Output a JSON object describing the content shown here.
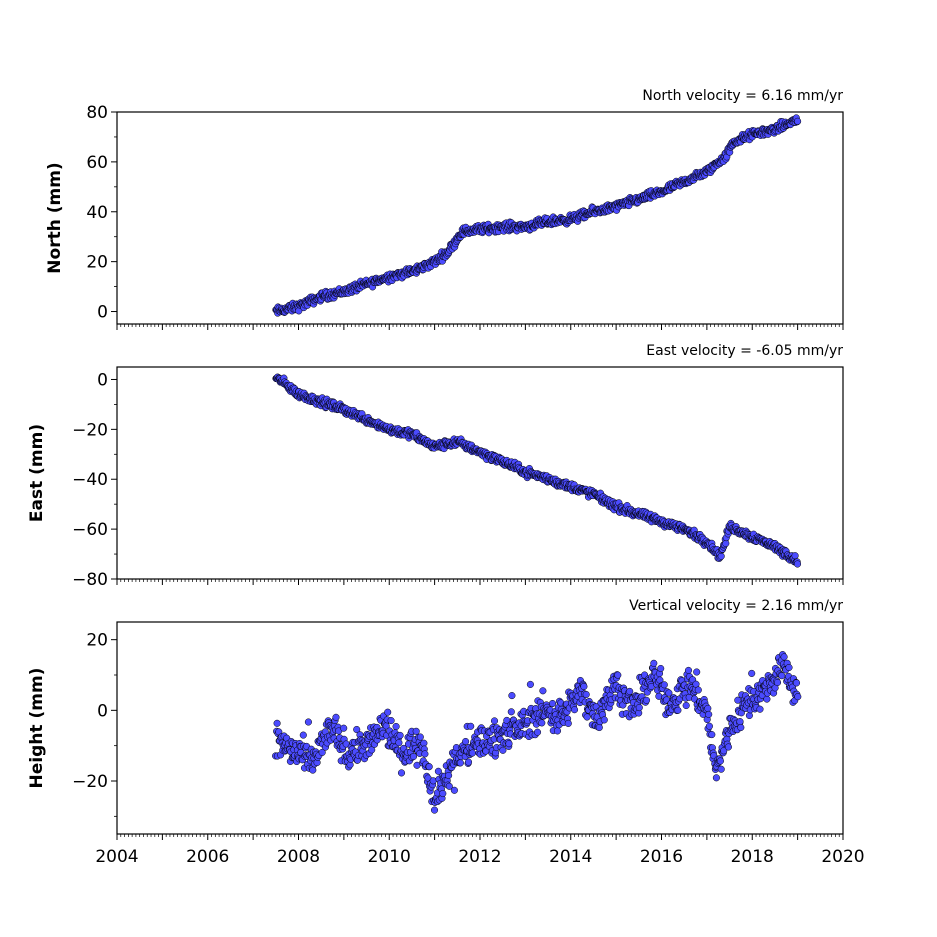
{
  "chart_data": [
    {
      "type": "scatter",
      "title": "North velocity = 6.16 mm/yr",
      "xlabel": "",
      "ylabel": "North (mm)",
      "xlim": [
        2004,
        2020
      ],
      "ylim": [
        -5,
        80
      ],
      "yticks": [
        0,
        20,
        40,
        60,
        80
      ],
      "marker_color": "#4b4bff",
      "edge_color": "#000000",
      "series": [
        {
          "x": [
            2007.5,
            2008.0,
            2008.5,
            2009.0,
            2009.5,
            2010.0,
            2010.5,
            2011.0,
            2011.3,
            2011.6,
            2012.0,
            2012.5,
            2013.0,
            2013.5,
            2014.0,
            2014.5,
            2015.0,
            2015.5,
            2016.0,
            2016.5,
            2017.0,
            2017.4,
            2017.6,
            2018.0,
            2018.5,
            2019.0
          ],
          "y": [
            0,
            2,
            6,
            8,
            11,
            14,
            16,
            20,
            24,
            32,
            33,
            34,
            34,
            36,
            37,
            40,
            42,
            45,
            48,
            52,
            56,
            62,
            68,
            71,
            73,
            77
          ]
        }
      ]
    },
    {
      "type": "scatter",
      "title": "East velocity = -6.05 mm/yr",
      "xlabel": "",
      "ylabel": "East (mm)",
      "xlim": [
        2004,
        2020
      ],
      "ylim": [
        -80,
        5
      ],
      "yticks": [
        0,
        -20,
        -40,
        -60,
        -80
      ],
      "marker_color": "#4b4bff",
      "edge_color": "#000000",
      "series": [
        {
          "x": [
            2007.5,
            2008.0,
            2008.5,
            2009.0,
            2009.5,
            2010.0,
            2010.5,
            2011.0,
            2011.5,
            2012.0,
            2012.5,
            2013.0,
            2013.5,
            2014.0,
            2014.5,
            2015.0,
            2015.5,
            2016.0,
            2016.5,
            2017.0,
            2017.3,
            2017.5,
            2018.0,
            2018.5,
            2019.0
          ],
          "y": [
            1,
            -6,
            -9,
            -12,
            -16,
            -20,
            -22,
            -27,
            -25,
            -29,
            -33,
            -37,
            -40,
            -43,
            -46,
            -51,
            -54,
            -57,
            -60,
            -65,
            -71,
            -59,
            -63,
            -67,
            -73
          ]
        }
      ]
    },
    {
      "type": "scatter",
      "title": "Vertical velocity = 2.16 mm/yr",
      "xlabel": "",
      "ylabel": "Height (mm)",
      "xlim": [
        2004,
        2020
      ],
      "ylim": [
        -35,
        25
      ],
      "yticks": [
        -20,
        0,
        20
      ],
      "xticks": [
        2004,
        2006,
        2008,
        2010,
        2012,
        2014,
        2016,
        2018,
        2020
      ],
      "marker_color": "#4b4bff",
      "edge_color": "#000000",
      "series": [
        {
          "x": [
            2007.5,
            2007.9,
            2008.3,
            2008.7,
            2009.1,
            2009.5,
            2009.9,
            2010.3,
            2010.7,
            2011.0,
            2011.4,
            2011.8,
            2012.2,
            2012.6,
            2013.0,
            2013.4,
            2013.8,
            2014.2,
            2014.6,
            2015.0,
            2015.4,
            2015.8,
            2016.2,
            2016.6,
            2017.0,
            2017.2,
            2017.5,
            2017.9,
            2018.3,
            2018.7,
            2019.0
          ],
          "y": [
            -8,
            -12,
            -15,
            -5,
            -12,
            -10,
            -5,
            -12,
            -8,
            -25,
            -15,
            -10,
            -8,
            -6,
            -4,
            0,
            -2,
            5,
            -2,
            8,
            0,
            10,
            2,
            8,
            0,
            -18,
            -5,
            3,
            6,
            12,
            5
          ]
        }
      ]
    }
  ]
}
